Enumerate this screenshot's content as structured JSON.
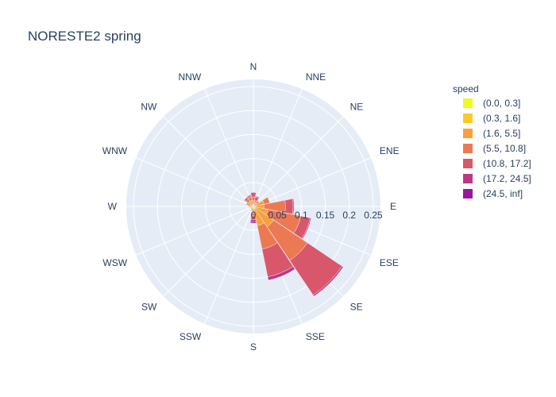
{
  "chart_data": {
    "type": "barpolar",
    "title": "NORESTE2 spring",
    "directions": [
      "N",
      "NNE",
      "NE",
      "ENE",
      "E",
      "ESE",
      "SE",
      "SSE",
      "S",
      "SSW",
      "SW",
      "WSW",
      "W",
      "WNW",
      "NW",
      "NNW"
    ],
    "radial_axis": {
      "range": [
        0,
        0.265
      ],
      "tick_values": [
        0,
        0.05,
        0.1,
        0.15,
        0.2,
        0.25
      ],
      "tick_labels": [
        "0",
        "0.05",
        "0.1",
        "0.15",
        "0.2",
        "0.25"
      ],
      "angle_deg": 0
    },
    "grid": true,
    "legend": {
      "title": "speed",
      "placement": "right"
    },
    "series": [
      {
        "name": "(0.0, 0.3]",
        "color": "#f0f921",
        "values": [
          0.002,
          0.001,
          0.001,
          0.001,
          0.001,
          0.002,
          0.002,
          0.002,
          0.001,
          0.001,
          0.001,
          0.001,
          0.001,
          0.001,
          0.001,
          0.001
        ]
      },
      {
        "name": "(0.3, 1.6]",
        "color": "#fdca26",
        "values": [
          0.003,
          0.002,
          0.002,
          0.002,
          0.003,
          0.004,
          0.004,
          0.004,
          0.003,
          0.002,
          0.002,
          0.002,
          0.002,
          0.002,
          0.002,
          0.002
        ]
      },
      {
        "name": "(1.6, 5.5]",
        "color": "#fb9f3a",
        "values": [
          0.007,
          0.006,
          0.007,
          0.02,
          0.018,
          0.025,
          0.045,
          0.035,
          0.01,
          0.004,
          0.003,
          0.003,
          0.004,
          0.006,
          0.01,
          0.01
        ]
      },
      {
        "name": "(5.5, 10.8]",
        "color": "#ed7953",
        "values": [
          0.008,
          0.004,
          0.004,
          0.012,
          0.045,
          0.07,
          0.085,
          0.05,
          0.006,
          0.002,
          0.001,
          0.001,
          0.002,
          0.004,
          0.006,
          0.008
        ]
      },
      {
        "name": "(10.8, 17.2]",
        "color": "#d8576b",
        "values": [
          0.009,
          0.007,
          0.001,
          0.0,
          0.016,
          0.02,
          0.087,
          0.059,
          0.008,
          0.001,
          0.0,
          0.0,
          0.001,
          0.002,
          0.004,
          0.003
        ]
      },
      {
        "name": "(17.2, 24.5]",
        "color": "#bd3786",
        "values": [
          0.001,
          0.002,
          0.0,
          0.0,
          0.002,
          0.002,
          0.003,
          0.007,
          0.004,
          0.0,
          0.0,
          0.0,
          0.0,
          0.0,
          0.0,
          0.001
        ]
      },
      {
        "name": "(24.5, inf]",
        "color": "#9c179e",
        "values": [
          0.0,
          0.0,
          0.0,
          0.0,
          0.0,
          0.0,
          0.0,
          0.0,
          0.003,
          0.0,
          0.0,
          0.0,
          0.0,
          0.0,
          0.0,
          0.0
        ]
      }
    ]
  },
  "colors": {
    "polar_bg": "#e5ecf6",
    "grid": "#ffffff",
    "text": "#2a3f5f"
  }
}
